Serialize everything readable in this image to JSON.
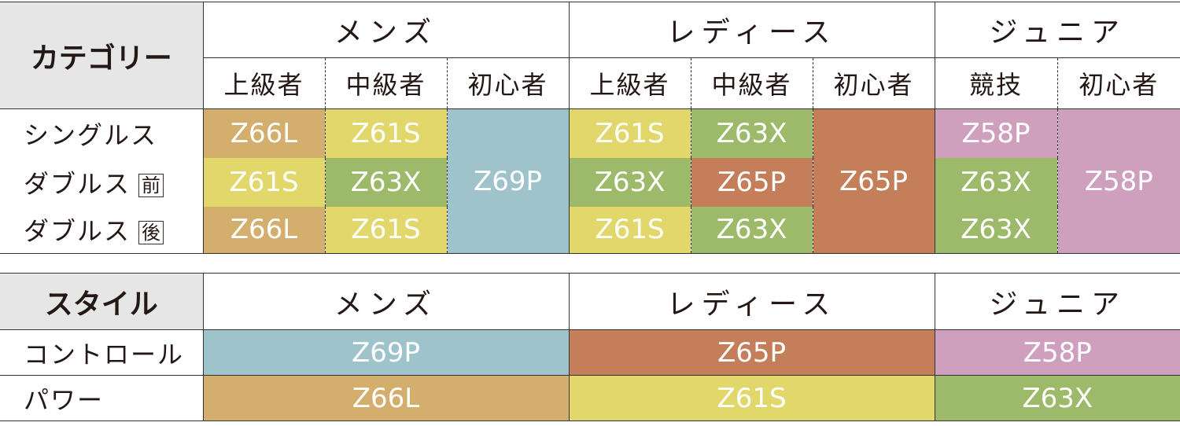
{
  "category_table": {
    "header": "カテゴリー",
    "groups": [
      {
        "name": "メンズ",
        "levels": [
          "上級者",
          "中級者",
          "初心者"
        ]
      },
      {
        "name": "レディース",
        "levels": [
          "上級者",
          "中級者",
          "初心者"
        ]
      },
      {
        "name": "ジュニア",
        "levels": [
          "競技",
          "初心者"
        ]
      }
    ],
    "rows": [
      {
        "label": "シングルス",
        "cells": [
          {
            "text": "Z66L",
            "color": "#d4ae6c"
          },
          {
            "text": "Z61S",
            "color": "#e2d76a"
          },
          {
            "text": "Z69P",
            "color": "#9fc3cb",
            "rowspan": 3
          },
          {
            "text": "Z61S",
            "color": "#e2d76a"
          },
          {
            "text": "Z63X",
            "color": "#9dba6a"
          },
          {
            "text": "Z65P",
            "color": "#c47f5a",
            "rowspan": 3
          },
          {
            "text": "Z58P",
            "color": "#cf9fbe"
          },
          {
            "text": "Z58P",
            "color": "#cf9fbe",
            "rowspan": 3
          }
        ]
      },
      {
        "label": "ダブルス",
        "badge": "前",
        "cells": [
          {
            "text": "Z61S",
            "color": "#e2d76a"
          },
          {
            "text": "Z63X",
            "color": "#9dba6a"
          },
          {
            "text": "Z63X",
            "color": "#9dba6a"
          },
          {
            "text": "Z65P",
            "color": "#c47f5a"
          },
          {
            "text": "Z63X",
            "color": "#9dba6a"
          }
        ]
      },
      {
        "label": "ダブルス",
        "badge": "後",
        "cells": [
          {
            "text": "Z66L",
            "color": "#d4ae6c"
          },
          {
            "text": "Z61S",
            "color": "#e2d76a"
          },
          {
            "text": "Z61S",
            "color": "#e2d76a"
          },
          {
            "text": "Z63X",
            "color": "#9dba6a"
          },
          {
            "text": "Z63X",
            "color": "#9dba6a"
          }
        ]
      }
    ]
  },
  "style_table": {
    "header": "スタイル",
    "groups": [
      "メンズ",
      "レディース",
      "ジュニア"
    ],
    "rows": [
      {
        "label": "コントロール",
        "cells": [
          {
            "text": "Z69P",
            "color": "#9fc3cb"
          },
          {
            "text": "Z65P",
            "color": "#c47f5a"
          },
          {
            "text": "Z58P",
            "color": "#cf9fbe"
          }
        ]
      },
      {
        "label": "パワー",
        "cells": [
          {
            "text": "Z66L",
            "color": "#d4ae6c"
          },
          {
            "text": "Z61S",
            "color": "#e2d76a"
          },
          {
            "text": "Z63X",
            "color": "#9dba6a"
          }
        ]
      }
    ]
  }
}
